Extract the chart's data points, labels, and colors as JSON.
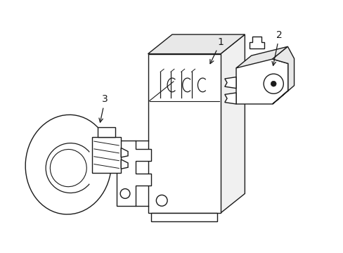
{
  "background_color": "#ffffff",
  "line_color": "#1a1a1a",
  "line_width": 1.0,
  "label_fontsize": 10,
  "figsize": [
    4.89,
    3.6
  ],
  "dpi": 100
}
